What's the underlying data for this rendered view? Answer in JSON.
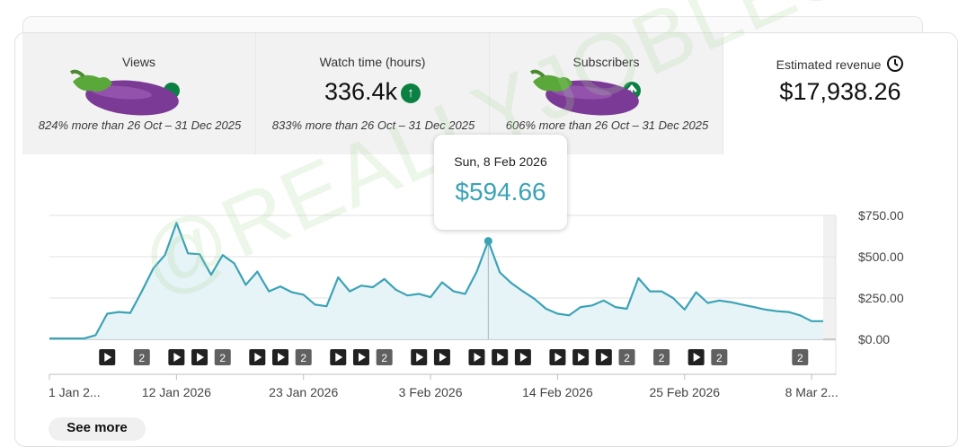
{
  "metrics": [
    {
      "label": "Views",
      "comparison": "824% more than 26 Oct – 31 Dec 2025",
      "icon": "eggplant-icon"
    },
    {
      "label": "Watch time (hours)",
      "value": "336.4k",
      "comparison": "833% more than 26 Oct – 31 Dec 2025",
      "icon": "arrow-up-icon"
    },
    {
      "label": "Subscribers",
      "comparison": "606% more than 26 Oct – 31 Dec 2025",
      "icon": "eggplant-icon"
    },
    {
      "label": "Estimated revenue",
      "value": "$17,938.26",
      "icon": "clock-icon"
    }
  ],
  "tooltip": {
    "date": "Sun, 8 Feb 2026",
    "value": "$594.66"
  },
  "see_more": "See more",
  "watermark": "@REALLYJOBLESS",
  "colors": {
    "line": "#3ba3b5",
    "area": "#e4f3f6",
    "positive": "#0b8043"
  },
  "chart_data": {
    "type": "area",
    "title": "",
    "y_ticks": [
      "$0.00",
      "$250.00",
      "$500.00",
      "$750.00"
    ],
    "ylim": [
      0,
      750
    ],
    "x_tick_labels": [
      "1 Jan 2...",
      "12 Jan 2026",
      "23 Jan 2026",
      "3 Feb 2026",
      "14 Feb 2026",
      "25 Feb 2026",
      "8 Mar 2..."
    ],
    "x_tick_values": [
      1,
      12,
      23,
      34,
      45,
      56,
      67
    ],
    "x": [
      1,
      2,
      3,
      4,
      5,
      6,
      7,
      8,
      9,
      10,
      11,
      12,
      13,
      14,
      15,
      16,
      17,
      18,
      19,
      20,
      21,
      22,
      23,
      24,
      25,
      26,
      27,
      28,
      29,
      30,
      31,
      32,
      33,
      34,
      35,
      36,
      37,
      38,
      39,
      40,
      41,
      42,
      43,
      44,
      45,
      46,
      47,
      48,
      49,
      50,
      51,
      52,
      53,
      54,
      55,
      56,
      57,
      58,
      59,
      60,
      61,
      62,
      63,
      64,
      65,
      66,
      67,
      68
    ],
    "values": [
      5,
      5,
      5,
      5,
      25,
      155,
      165,
      160,
      290,
      430,
      510,
      705,
      520,
      515,
      390,
      510,
      460,
      330,
      410,
      290,
      320,
      285,
      270,
      210,
      200,
      375,
      290,
      325,
      315,
      365,
      300,
      265,
      275,
      255,
      345,
      290,
      275,
      410,
      595,
      405,
      340,
      290,
      245,
      185,
      155,
      145,
      195,
      205,
      235,
      195,
      185,
      370,
      290,
      290,
      250,
      180,
      285,
      220,
      235,
      225,
      210,
      195,
      180,
      170,
      165,
      145,
      110,
      110
    ],
    "highlight": {
      "x": 39,
      "value": 594.66
    },
    "grid": true,
    "legend": "none",
    "annotation_markers": [
      {
        "x": 6,
        "type": "play"
      },
      {
        "x": 9,
        "type": "2"
      },
      {
        "x": 12,
        "type": "play"
      },
      {
        "x": 14,
        "type": "play"
      },
      {
        "x": 16,
        "type": "2"
      },
      {
        "x": 19,
        "type": "play"
      },
      {
        "x": 21,
        "type": "play"
      },
      {
        "x": 23,
        "type": "2"
      },
      {
        "x": 26,
        "type": "play"
      },
      {
        "x": 28,
        "type": "play"
      },
      {
        "x": 30,
        "type": "2"
      },
      {
        "x": 33,
        "type": "play"
      },
      {
        "x": 35,
        "type": "play"
      },
      {
        "x": 38,
        "type": "play"
      },
      {
        "x": 40,
        "type": "play"
      },
      {
        "x": 42,
        "type": "play"
      },
      {
        "x": 45,
        "type": "play"
      },
      {
        "x": 47,
        "type": "play"
      },
      {
        "x": 49,
        "type": "play"
      },
      {
        "x": 51,
        "type": "2"
      },
      {
        "x": 54,
        "type": "2"
      },
      {
        "x": 57,
        "type": "play"
      },
      {
        "x": 59,
        "type": "2"
      },
      {
        "x": 66,
        "type": "2"
      }
    ]
  }
}
